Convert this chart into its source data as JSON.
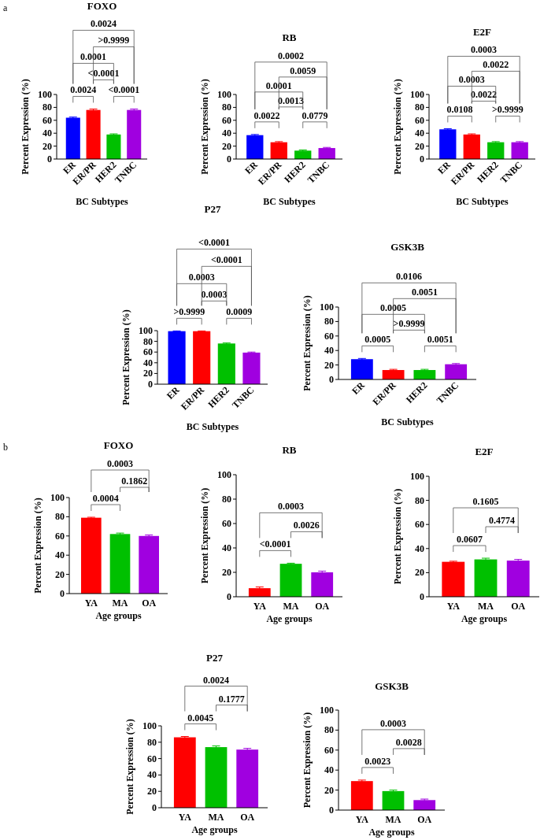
{
  "chart_data": [
    {
      "type": "bar",
      "title": "FOXO",
      "categories": [
        "ER",
        "ER/PR",
        "HER2",
        "TNBC"
      ],
      "values": [
        64,
        76,
        38,
        76
      ],
      "errors": [
        1,
        1.5,
        1,
        1.5
      ],
      "colors": [
        "#0000ff",
        "#ff0000",
        "#00c000",
        "#a000e0"
      ],
      "ylim": [
        0,
        100
      ],
      "yticks": [
        0,
        20,
        40,
        60,
        80,
        100
      ],
      "xlabel": "BC Subtypes",
      "ylabel": "Percent Expression (%)",
      "annotations": [
        "0.0024",
        "<0.0001",
        "<0.0001",
        "0.0001",
        ">0.9999",
        "0.0024",
        "a"
      ]
    },
    {
      "type": "bar",
      "title": "RB",
      "categories": [
        "ER",
        "ER/PR",
        "HER2",
        "TNBC"
      ],
      "values": [
        37,
        26,
        13,
        17
      ],
      "errors": [
        1,
        1,
        1,
        1
      ],
      "colors": [
        "#0000ff",
        "#ff0000",
        "#00c000",
        "#a000e0"
      ],
      "ylim": [
        0,
        100
      ],
      "yticks": [
        0,
        20,
        40,
        60,
        80,
        100
      ],
      "xlabel": "BC Subtypes",
      "ylabel": "Percent Expression (%)",
      "annotations": [
        "0.0022",
        "0.0779",
        "0.0013",
        "0.0001",
        "0.0059",
        "0.0002"
      ]
    },
    {
      "type": "bar",
      "title": "E2F",
      "categories": [
        "ER",
        "ER/PR",
        "HER2",
        "TNBC"
      ],
      "values": [
        46,
        38,
        26,
        26
      ],
      "errors": [
        1,
        1,
        1,
        1
      ],
      "colors": [
        "#0000ff",
        "#ff0000",
        "#00c000",
        "#a000e0"
      ],
      "ylim": [
        0,
        100
      ],
      "yticks": [
        0,
        20,
        40,
        60,
        80,
        100
      ],
      "xlabel": "BC Subtypes",
      "ylabel": "Percent Expression (%)",
      "annotations": [
        "0.0108",
        ">0.9999",
        "0.0022",
        "0.0003",
        "0.0022",
        "0.0003"
      ]
    },
    {
      "type": "bar",
      "title": "P27",
      "categories": [
        "ER",
        "ER/PR",
        "HER2",
        "TNBC"
      ],
      "values": [
        99,
        99,
        76,
        59
      ],
      "errors": [
        0.5,
        0.5,
        1,
        1
      ],
      "colors": [
        "#0000ff",
        "#ff0000",
        "#00c000",
        "#a000e0"
      ],
      "ylim": [
        0,
        100
      ],
      "yticks": [
        0,
        20,
        40,
        60,
        80,
        100
      ],
      "xlabel": "BC Subtypes",
      "ylabel": "Percent Expression (%)",
      "annotations": [
        ">0.9999",
        "0.0009",
        "0.0003",
        "0.0003",
        "<0.0001",
        "<0.0001"
      ]
    },
    {
      "type": "bar",
      "title": "GSK3B",
      "categories": [
        "ER",
        "ER/PR",
        "HER2",
        "TNBC"
      ],
      "values": [
        28,
        13,
        13,
        21
      ],
      "errors": [
        1,
        1,
        1,
        1
      ],
      "colors": [
        "#0000ff",
        "#ff0000",
        "#00c000",
        "#a000e0"
      ],
      "ylim": [
        0,
        100
      ],
      "yticks": [
        0,
        20,
        40,
        60,
        80,
        100
      ],
      "xlabel": "BC Subtypes",
      "ylabel": "Percent Expression (%)",
      "annotations": [
        "0.0005",
        "0.0051",
        ">0.9999",
        "0.0005",
        "0.0051",
        "0.0106"
      ]
    },
    {
      "type": "bar",
      "title": "FOXO",
      "categories": [
        "YA",
        "MA",
        "OA"
      ],
      "values": [
        79,
        62,
        60
      ],
      "errors": [
        0.5,
        1,
        1
      ],
      "colors": [
        "#ff0000",
        "#00c000",
        "#a000e0"
      ],
      "ylim": [
        0,
        100
      ],
      "yticks": [
        0,
        20,
        40,
        60,
        80,
        100
      ],
      "xlabel": "Age groups",
      "ylabel": "Percent Expression (%)",
      "annotations": [
        "0.0004",
        "0.1862",
        "0.0003",
        "b"
      ]
    },
    {
      "type": "bar",
      "title": "RB",
      "categories": [
        "YA",
        "MA",
        "OA"
      ],
      "values": [
        7,
        27,
        20
      ],
      "errors": [
        1,
        0.5,
        1
      ],
      "colors": [
        "#ff0000",
        "#00c000",
        "#a000e0"
      ],
      "ylim": [
        0,
        100
      ],
      "yticks": [
        0,
        20,
        40,
        60,
        80,
        100
      ],
      "xlabel": "Age groups",
      "ylabel": "Percent Expression (%)",
      "annotations": [
        "<0.0001",
        "0.0026",
        "0.0003"
      ]
    },
    {
      "type": "bar",
      "title": "E2F",
      "categories": [
        "YA",
        "MA",
        "OA"
      ],
      "values": [
        29,
        31,
        30
      ],
      "errors": [
        0.5,
        1,
        1
      ],
      "colors": [
        "#ff0000",
        "#00c000",
        "#a000e0"
      ],
      "ylim": [
        0,
        100
      ],
      "yticks": [
        0,
        20,
        40,
        60,
        80,
        100
      ],
      "xlabel": "Age groups",
      "ylabel": "Percent Expression (%)",
      "annotations": [
        "0.0607",
        "0.4774",
        "0.1605"
      ]
    },
    {
      "type": "bar",
      "title": "P27",
      "categories": [
        "YA",
        "MA",
        "OA"
      ],
      "values": [
        86,
        74,
        71
      ],
      "errors": [
        1,
        1.5,
        1.5
      ],
      "colors": [
        "#ff0000",
        "#00c000",
        "#a000e0"
      ],
      "ylim": [
        0,
        100
      ],
      "yticks": [
        0,
        20,
        40,
        60,
        80,
        100
      ],
      "xlabel": "Age groups",
      "ylabel": "Percent Expression (%)",
      "annotations": [
        "0.0045",
        "0.1777",
        "0.0024"
      ]
    },
    {
      "type": "bar",
      "title": "GSK3B",
      "categories": [
        "YA",
        "MA",
        "OA"
      ],
      "values": [
        29,
        19,
        10
      ],
      "errors": [
        1,
        1,
        1
      ],
      "colors": [
        "#ff0000",
        "#00c000",
        "#a000e0"
      ],
      "ylim": [
        0,
        100
      ],
      "yticks": [
        0,
        20,
        40,
        60,
        80,
        100
      ],
      "xlabel": "Age groups",
      "ylabel": "Percent Expression (%)",
      "annotations": [
        "0.0023",
        "0.0028",
        "0.0003"
      ]
    }
  ]
}
